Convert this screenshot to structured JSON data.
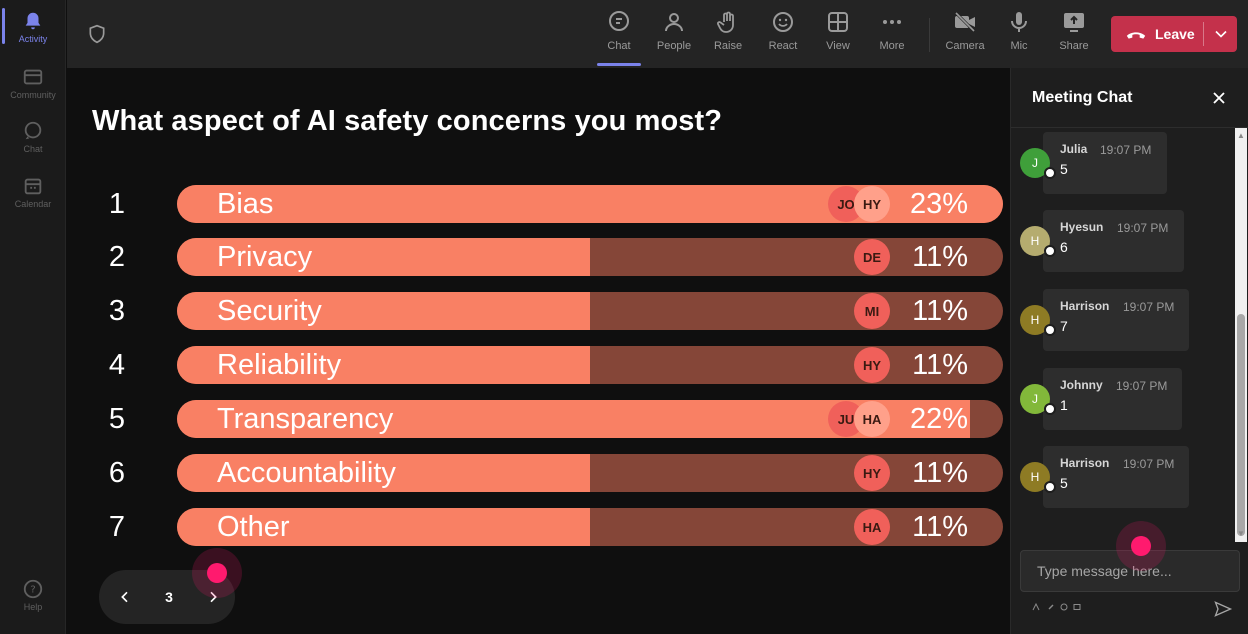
{
  "rail": {
    "items": [
      {
        "label": "Activity",
        "icon": "bell-icon"
      },
      {
        "label": "Community",
        "icon": "community-icon"
      },
      {
        "label": "Chat",
        "icon": "chat-icon"
      },
      {
        "label": "Calendar",
        "icon": "calendar-icon"
      }
    ],
    "help_label": "Help"
  },
  "toolbar": {
    "buttons": [
      {
        "label": "Chat",
        "icon": "chat-icon",
        "active": true
      },
      {
        "label": "People",
        "icon": "people-icon"
      },
      {
        "label": "Raise",
        "icon": "hand-icon"
      },
      {
        "label": "React",
        "icon": "smile-icon"
      },
      {
        "label": "View",
        "icon": "grid-icon"
      },
      {
        "label": "More",
        "icon": "more-icon"
      },
      {
        "label": "Camera",
        "icon": "camera-off-icon"
      },
      {
        "label": "Mic",
        "icon": "mic-icon"
      },
      {
        "label": "Share",
        "icon": "share-icon"
      }
    ],
    "leave_label": "Leave",
    "leave_color": "#c4314b"
  },
  "poll": {
    "question": "What aspect of AI safety concerns you most?",
    "options": [
      {
        "num": "1",
        "label": "Bias",
        "percent": "23%",
        "fill": 1.0,
        "voters": [
          "JO",
          "HY"
        ]
      },
      {
        "num": "2",
        "label": "Privacy",
        "percent": "11%",
        "fill": 0.5,
        "voters": [
          "DE"
        ]
      },
      {
        "num": "3",
        "label": "Security",
        "percent": "11%",
        "fill": 0.5,
        "voters": [
          "MI"
        ]
      },
      {
        "num": "4",
        "label": "Reliability",
        "percent": "11%",
        "fill": 0.5,
        "voters": [
          "HY"
        ]
      },
      {
        "num": "5",
        "label": "Transparency",
        "percent": "22%",
        "fill": 0.96,
        "voters": [
          "JU",
          "HA"
        ]
      },
      {
        "num": "6",
        "label": "Accountability",
        "percent": "11%",
        "fill": 0.5,
        "voters": [
          "HY"
        ]
      },
      {
        "num": "7",
        "label": "Other",
        "percent": "11%",
        "fill": 0.5,
        "voters": [
          "HA"
        ]
      }
    ],
    "colors": {
      "fill": "#f98064",
      "track": "#854638"
    },
    "pager": {
      "page": "3"
    }
  },
  "chat": {
    "title": "Meeting Chat",
    "messages": [
      {
        "initial": "J",
        "sender": "Julia",
        "time": "19:07 PM",
        "text": "5",
        "avatar_color": "#3f9f3a"
      },
      {
        "initial": "H",
        "sender": "Hyesun",
        "time": "19:07 PM",
        "text": "6",
        "avatar_color": "#b5ac6f"
      },
      {
        "initial": "H",
        "sender": "Harrison",
        "time": "19:07 PM",
        "text": "7",
        "avatar_color": "#8e7b24"
      },
      {
        "initial": "J",
        "sender": "Johnny",
        "time": "19:07 PM",
        "text": "1",
        "avatar_color": "#82b83a"
      },
      {
        "initial": "H",
        "sender": "Harrison",
        "time": "19:07 PM",
        "text": "5",
        "avatar_color": "#8e7b24"
      }
    ],
    "compose_placeholder": "Type message here..."
  }
}
